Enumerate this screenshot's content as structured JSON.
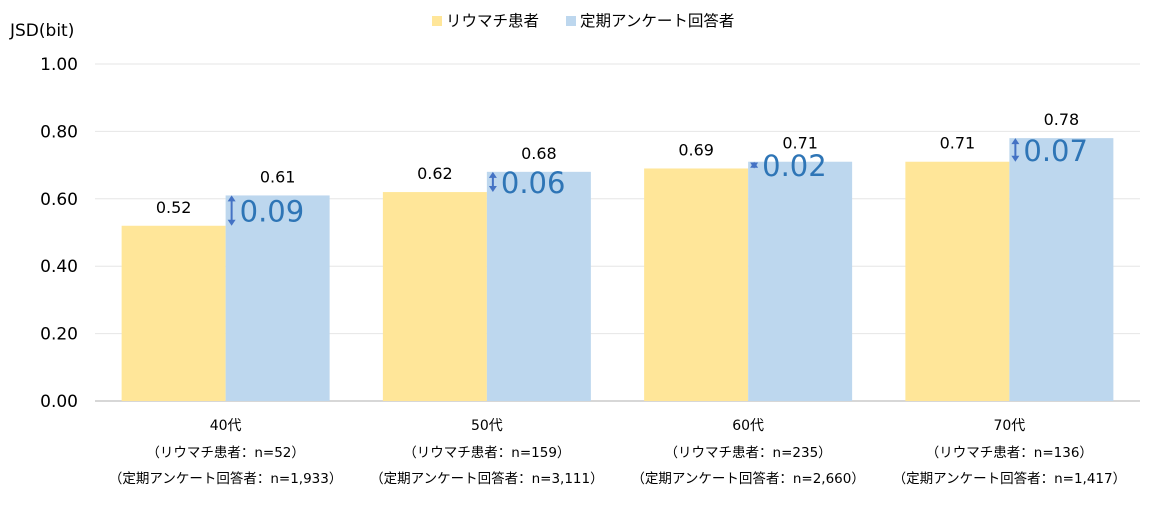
{
  "chart_data": {
    "type": "bar",
    "ylabel": "JSD(bit)",
    "ylim": [
      0,
      1.0
    ],
    "yticks": [
      "0.00",
      "0.20",
      "0.40",
      "0.60",
      "0.80",
      "1.00"
    ],
    "grid": true,
    "legend_position": "top-center",
    "categories": [
      {
        "line1": "40代",
        "line2": "（リウマチ患者：n=52）",
        "line3": "（定期アンケート回答者：n=1,933）"
      },
      {
        "line1": "50代",
        "line2": "（リウマチ患者：n=159）",
        "line3": "（定期アンケート回答者：n=3,111）"
      },
      {
        "line1": "60代",
        "line2": "（リウマチ患者：n=235）",
        "line3": "（定期アンケート回答者：n=2,660）"
      },
      {
        "line1": "70代",
        "line2": "（リウマチ患者：n=136）",
        "line3": "（定期アンケート回答者：n=1,417）"
      }
    ],
    "series": [
      {
        "name": "リウマチ患者",
        "color": "#FFE699",
        "values": [
          0.52,
          0.62,
          0.69,
          0.71
        ],
        "labels": [
          "0.52",
          "0.62",
          "0.69",
          "0.71"
        ]
      },
      {
        "name": "定期アンケート回答者",
        "color": "#BDD7EE",
        "values": [
          0.61,
          0.68,
          0.71,
          0.78
        ],
        "labels": [
          "0.61",
          "0.68",
          "0.71",
          "0.78"
        ]
      }
    ],
    "differences": [
      "0.09",
      "0.06",
      "0.02",
      "0.07"
    ],
    "difference_color": "#2E75B6",
    "arrow_color": "#4472C4"
  }
}
